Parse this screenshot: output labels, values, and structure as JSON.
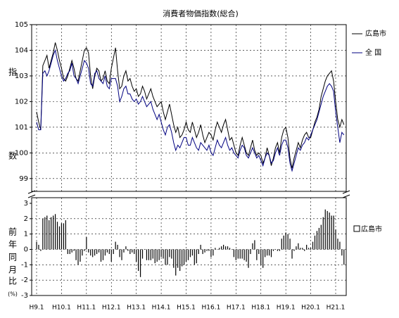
{
  "chart_data": [
    {
      "type": "line",
      "title": "消費者物価指数(総合)",
      "ylabel": [
        "指",
        "数"
      ],
      "ylim": [
        98.5,
        105
      ],
      "yticks": [
        99,
        100,
        101,
        102,
        103,
        104,
        105
      ],
      "grid": true,
      "series": [
        {
          "name": "広島市",
          "color": "#000000",
          "values": [
            101.6,
            101.2,
            100.9,
            103.4,
            103.6,
            103.8,
            103.3,
            103.6,
            103.9,
            104.3,
            104.0,
            103.6,
            103.3,
            102.9,
            102.8,
            103.0,
            103.3,
            103.6,
            103.3,
            102.9,
            102.8,
            103.2,
            103.6,
            104.0,
            104.1,
            103.9,
            103.0,
            102.5,
            103.0,
            103.3,
            103.2,
            102.8,
            102.9,
            103.2,
            102.8,
            102.7,
            103.3,
            103.7,
            104.1,
            103.2,
            102.5,
            102.6,
            103.0,
            103.2,
            102.8,
            102.9,
            102.6,
            102.4,
            102.5,
            102.2,
            102.3,
            102.6,
            102.4,
            102.1,
            102.3,
            102.5,
            102.2,
            102.0,
            101.8,
            101.9,
            102.0,
            101.6,
            101.3,
            101.6,
            101.9,
            101.5,
            101.1,
            100.8,
            101.0,
            100.6,
            100.7,
            100.9,
            101.2,
            100.9,
            100.8,
            101.2,
            100.9,
            100.6,
            100.8,
            101.1,
            100.7,
            100.4,
            100.6,
            100.8,
            100.7,
            100.5,
            100.9,
            101.2,
            101.0,
            100.8,
            101.1,
            101.3,
            100.9,
            100.5,
            100.6,
            100.3,
            100.0,
            99.9,
            100.3,
            100.6,
            100.3,
            100.0,
            99.9,
            100.2,
            100.5,
            100.1,
            99.9,
            100.0,
            99.9,
            99.6,
            99.8,
            100.2,
            99.9,
            99.5,
            99.8,
            100.2,
            100.4,
            100.0,
            100.6,
            100.9,
            101.0,
            100.6,
            99.8,
            99.4,
            99.8,
            100.1,
            100.4,
            100.2,
            100.5,
            100.7,
            100.8,
            100.6,
            100.6,
            100.9,
            101.2,
            101.4,
            101.7,
            102.2,
            102.5,
            102.8,
            103.0,
            103.1,
            103.2,
            102.8,
            102.0,
            101.3,
            101.0,
            101.3,
            101.1
          ]
        },
        {
          "name": "全 国",
          "color": "#000080",
          "values": [
            101.2,
            100.9,
            100.9,
            103.1,
            103.2,
            103.0,
            103.2,
            103.5,
            103.8,
            104.0,
            103.6,
            103.3,
            103.0,
            102.8,
            102.9,
            103.1,
            103.2,
            103.5,
            103.0,
            102.9,
            102.7,
            103.0,
            103.3,
            103.6,
            103.5,
            103.3,
            102.7,
            102.6,
            103.1,
            103.2,
            102.9,
            102.8,
            102.7,
            103.0,
            102.6,
            102.5,
            102.9,
            102.9,
            102.9,
            102.6,
            102.0,
            102.2,
            102.5,
            102.6,
            102.3,
            102.3,
            102.1,
            102.0,
            102.1,
            101.9,
            102.0,
            102.2,
            102.0,
            101.8,
            101.9,
            102.0,
            101.7,
            101.5,
            101.3,
            101.5,
            101.2,
            100.9,
            100.7,
            101.0,
            101.1,
            100.8,
            100.4,
            100.1,
            100.3,
            100.2,
            100.4,
            100.6,
            100.6,
            100.3,
            100.3,
            100.6,
            100.4,
            100.2,
            100.1,
            100.4,
            100.3,
            100.2,
            100.1,
            100.3,
            100.0,
            99.9,
            100.2,
            100.5,
            100.3,
            100.2,
            100.4,
            100.6,
            100.3,
            100.1,
            100.2,
            100.0,
            99.9,
            99.8,
            100.1,
            100.3,
            100.2,
            99.9,
            99.8,
            100.0,
            100.2,
            100.0,
            99.8,
            99.9,
            99.7,
            99.5,
            99.8,
            100.0,
            99.9,
            99.6,
            99.7,
            100.0,
            100.2,
            99.9,
            100.3,
            100.5,
            100.5,
            100.2,
            99.6,
            99.3,
            99.6,
            99.9,
            100.2,
            100.1,
            100.3,
            100.4,
            100.6,
            100.5,
            100.7,
            100.9,
            101.1,
            101.3,
            101.6,
            101.9,
            102.2,
            102.4,
            102.6,
            102.7,
            102.6,
            102.4,
            101.6,
            101.0,
            100.4,
            100.8,
            100.7
          ]
        }
      ]
    },
    {
      "type": "bar",
      "ylabel": [
        "前",
        "年",
        "同",
        "月",
        "比",
        "(%)"
      ],
      "ylim": [
        -3,
        3
      ],
      "yticks": [
        -3,
        -2,
        -1,
        0,
        1,
        2,
        3
      ],
      "grid": true,
      "categories": [
        "H9.1",
        null,
        null,
        null,
        null,
        null,
        null,
        null,
        null,
        null,
        null,
        null,
        "H10.1",
        null,
        null,
        null,
        null,
        null,
        null,
        null,
        null,
        null,
        null,
        null,
        "H11.1",
        null,
        null,
        null,
        null,
        null,
        null,
        null,
        null,
        null,
        null,
        null,
        "H12.1",
        null,
        null,
        null,
        null,
        null,
        null,
        null,
        null,
        null,
        null,
        null,
        "H13.1",
        null,
        null,
        null,
        null,
        null,
        null,
        null,
        null,
        null,
        null,
        null,
        "H14.1",
        null,
        null,
        null,
        null,
        null,
        null,
        null,
        null,
        null,
        null,
        null,
        "H15.1",
        null,
        null,
        null,
        null,
        null,
        null,
        null,
        null,
        null,
        null,
        null,
        "H16.1",
        null,
        null,
        null,
        null,
        null,
        null,
        null,
        null,
        null,
        null,
        null,
        "H17.1",
        null,
        null,
        null,
        null,
        null,
        null,
        null,
        null,
        null,
        null,
        null,
        "H18.1",
        null,
        null,
        null,
        null,
        null,
        null,
        null,
        null,
        null,
        null,
        null,
        "H19.1",
        null,
        null,
        null,
        null,
        null,
        null,
        null,
        null,
        null,
        null,
        null,
        "H20.1",
        null,
        null,
        null,
        null,
        null,
        null,
        null,
        null,
        null,
        null,
        null,
        "H21.1",
        null,
        null,
        null,
        null
      ],
      "series": [
        {
          "name": "広島市",
          "color": "#000000",
          "values": [
            0.5,
            0.3,
            -0.1,
            2.0,
            2.1,
            2.2,
            1.9,
            2.1,
            2.2,
            2.3,
            1.8,
            1.5,
            1.7,
            1.7,
            1.9,
            -0.3,
            -0.3,
            -0.2,
            -0.1,
            -0.7,
            -1.0,
            -0.8,
            -0.4,
            -0.1,
            0.8,
            -0.2,
            -0.4,
            -0.5,
            -0.4,
            -0.3,
            -0.2,
            -0.8,
            -0.7,
            -0.4,
            -0.2,
            -0.3,
            -0.8,
            -0.3,
            0.5,
            0.3,
            -0.5,
            -0.7,
            -0.2,
            0.2,
            -0.1,
            -0.3,
            -0.2,
            -0.3,
            -0.8,
            -1.4,
            -1.8,
            -0.6,
            0.0,
            -0.7,
            -0.7,
            -0.7,
            -0.6,
            -0.9,
            -0.8,
            -0.7,
            -0.5,
            -0.6,
            -1.0,
            -1.0,
            -0.5,
            -0.6,
            -1.2,
            -1.7,
            -1.2,
            -1.4,
            -1.1,
            -1.0,
            -0.8,
            -0.7,
            -0.5,
            -0.4,
            -1.0,
            -0.9,
            -0.3,
            0.3,
            -0.3,
            -0.2,
            -0.1,
            -0.1,
            -0.5,
            -0.4,
            0.1,
            0.0,
            0.1,
            0.2,
            0.3,
            0.2,
            0.2,
            0.1,
            0.0,
            -0.5,
            -0.7,
            -0.6,
            -0.6,
            -0.6,
            -0.7,
            -0.8,
            -1.2,
            -0.3,
            0.4,
            0.6,
            -0.7,
            -0.3,
            -1.0,
            -1.2,
            -0.5,
            -0.4,
            -0.4,
            -0.5,
            -0.1,
            0.0,
            -0.1,
            -0.1,
            0.7,
            0.9,
            1.1,
            1.0,
            0.7,
            -0.6,
            -0.1,
            0.2,
            0.4,
            0.1,
            0.1,
            -0.1,
            0.3,
            0.1,
            0.1,
            0.5,
            0.9,
            1.2,
            1.4,
            1.6,
            2.1,
            2.6,
            2.5,
            2.4,
            2.2,
            2.2,
            1.3,
            0.7,
            0.5,
            -0.4,
            -1.0
          ]
        }
      ]
    }
  ]
}
